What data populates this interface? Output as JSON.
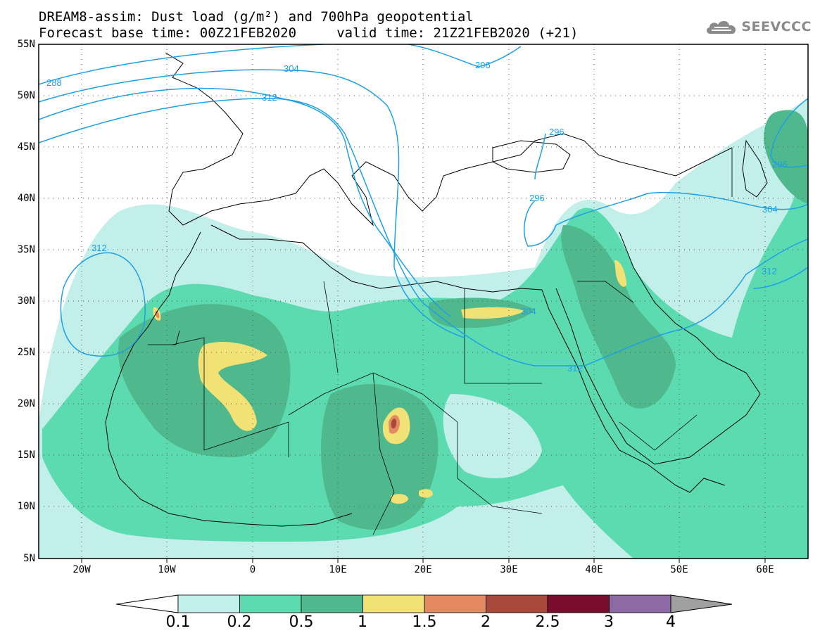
{
  "title": {
    "line1": "DREAM8-assim: Dust load (g/m²) and 700hPa geopotential",
    "line2": "Forecast base time: 00Z21FEB2020     valid time: 21Z21FEB2020 (+21)"
  },
  "logo": {
    "text": "SEEVCCC",
    "icon": "cloud-logo-icon"
  },
  "map": {
    "lat_labels": [
      "55N",
      "50N",
      "45N",
      "40N",
      "35N",
      "30N",
      "25N",
      "20N",
      "15N",
      "10N",
      "5N"
    ],
    "lon_labels": [
      "20W",
      "10W",
      "0",
      "10E",
      "20E",
      "30E",
      "40E",
      "50E",
      "60E"
    ],
    "lon_range": [
      -25,
      65
    ],
    "lat_range": [
      5,
      55
    ],
    "contour_labels": [
      "288",
      "304",
      "312",
      "296",
      "296",
      "296",
      "296",
      "304",
      "312",
      "304",
      "312",
      "312"
    ],
    "contour_color": "#1fa0e6"
  },
  "colorbar": {
    "labels": [
      "0.1",
      "0.2",
      "0.5",
      "1",
      "1.5",
      "2",
      "2.5",
      "3",
      "4"
    ],
    "colors": [
      "#c2efe9",
      "#5ddbb0",
      "#4fb98d",
      "#f2e275",
      "#e48a63",
      "#a8493c",
      "#7a0d2e",
      "#8d6aa3",
      "#a0a0a0"
    ],
    "under_color": "#ffffff"
  }
}
